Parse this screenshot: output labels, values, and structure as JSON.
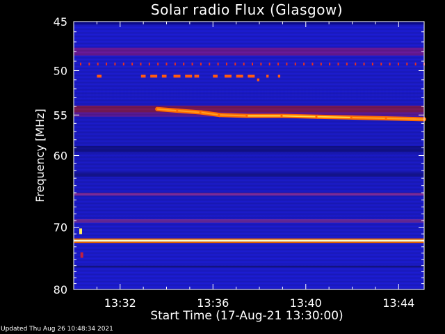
{
  "chart_data": {
    "type": "heatmap",
    "title": "Solar radio Flux (Glasgow)",
    "xlabel": "Start Time (17-Aug-21 13:30:00)",
    "ylabel": "Frequency [MHz]",
    "xlim_minutes": [
      0,
      15.1
    ],
    "ylim_mhz": [
      45,
      80
    ],
    "x_ticks": [
      {
        "minute": 2,
        "label": "13:32"
      },
      {
        "minute": 6,
        "label": "13:36"
      },
      {
        "minute": 10,
        "label": "13:40"
      },
      {
        "minute": 14,
        "label": "13:44"
      }
    ],
    "y_ticks": [
      {
        "mhz": 45,
        "label": "45"
      },
      {
        "mhz": 50,
        "label": "50"
      },
      {
        "mhz": 55,
        "label": "55"
      },
      {
        "mhz": 60,
        "label": "60"
      },
      {
        "mhz": 70,
        "label": "70"
      },
      {
        "mhz": 80,
        "label": "80"
      }
    ],
    "background_color": "#1e1ee0",
    "bands": [
      {
        "mhz_from": 45.0,
        "mhz_to": 45.3,
        "color": "#0a0a90"
      },
      {
        "mhz_from": 47.6,
        "mhz_to": 48.4,
        "color": "#6a1a9a"
      },
      {
        "mhz_from": 53.9,
        "mhz_to": 54.7,
        "color": "#7a1a5a"
      },
      {
        "mhz_from": 54.7,
        "mhz_to": 55.2,
        "color": "#5a1a9a"
      },
      {
        "mhz_from": 58.8,
        "mhz_to": 59.6,
        "color": "#121290"
      },
      {
        "mhz_from": 62.2,
        "mhz_to": 62.8,
        "color": "#141496"
      },
      {
        "mhz_from": 65.0,
        "mhz_to": 65.4,
        "color": "#7a2a9a"
      },
      {
        "mhz_from": 68.8,
        "mhz_to": 69.3,
        "color": "#6a2aa0"
      },
      {
        "mhz_from": 71.7,
        "mhz_to": 71.9,
        "color": "#ff7000"
      },
      {
        "mhz_from": 71.9,
        "mhz_to": 72.2,
        "color": "#ffffd0"
      },
      {
        "mhz_from": 72.2,
        "mhz_to": 72.4,
        "color": "#ff7000"
      },
      {
        "mhz_from": 76.0,
        "mhz_to": 76.3,
        "color": "#14148a"
      }
    ],
    "periodic_dots": {
      "mhz": 49.3,
      "minute_from": 0.3,
      "minute_to": 15.1,
      "step": 0.37,
      "color": "#e83020"
    },
    "dashes_50mhz": [
      {
        "minute_from": 1.0,
        "minute_to": 1.2,
        "mhz": 50.6
      },
      {
        "minute_from": 2.9,
        "minute_to": 3.1,
        "mhz": 50.6
      },
      {
        "minute_from": 3.3,
        "minute_to": 3.6,
        "mhz": 50.6
      },
      {
        "minute_from": 3.8,
        "minute_to": 4.0,
        "mhz": 50.6
      },
      {
        "minute_from": 4.3,
        "minute_to": 4.6,
        "mhz": 50.6
      },
      {
        "minute_from": 4.8,
        "minute_to": 5.1,
        "mhz": 50.6
      },
      {
        "minute_from": 5.2,
        "minute_to": 5.4,
        "mhz": 50.6
      },
      {
        "minute_from": 6.0,
        "minute_to": 6.2,
        "mhz": 50.6
      },
      {
        "minute_from": 6.5,
        "minute_to": 6.8,
        "mhz": 50.6
      },
      {
        "minute_from": 7.0,
        "minute_to": 7.3,
        "mhz": 50.6
      },
      {
        "minute_from": 7.5,
        "minute_to": 7.8,
        "mhz": 50.6
      },
      {
        "minute_from": 7.9,
        "minute_to": 8.0,
        "mhz": 51.0
      },
      {
        "minute_from": 8.3,
        "minute_to": 8.4,
        "mhz": 50.6
      },
      {
        "minute_from": 8.8,
        "minute_to": 8.9,
        "mhz": 50.6
      }
    ],
    "drifting_feature": [
      {
        "minute": 3.6,
        "mhz": 54.3
      },
      {
        "minute": 4.5,
        "mhz": 54.5
      },
      {
        "minute": 5.5,
        "mhz": 54.7
      },
      {
        "minute": 6.3,
        "mhz": 55.0
      },
      {
        "minute": 7.5,
        "mhz": 55.1
      },
      {
        "minute": 9.0,
        "mhz": 55.1
      },
      {
        "minute": 10.5,
        "mhz": 55.2
      },
      {
        "minute": 12.0,
        "mhz": 55.3
      },
      {
        "minute": 13.5,
        "mhz": 55.4
      },
      {
        "minute": 15.1,
        "mhz": 55.5
      }
    ],
    "spots": [
      {
        "minute": 0.3,
        "mhz": 70.6,
        "color": "#ffee60"
      },
      {
        "minute": 0.35,
        "mhz": 74.3,
        "color": "#c02040"
      }
    ]
  },
  "footer": {
    "updated": "Updated Thu Aug 26 10:48:34 2021"
  }
}
